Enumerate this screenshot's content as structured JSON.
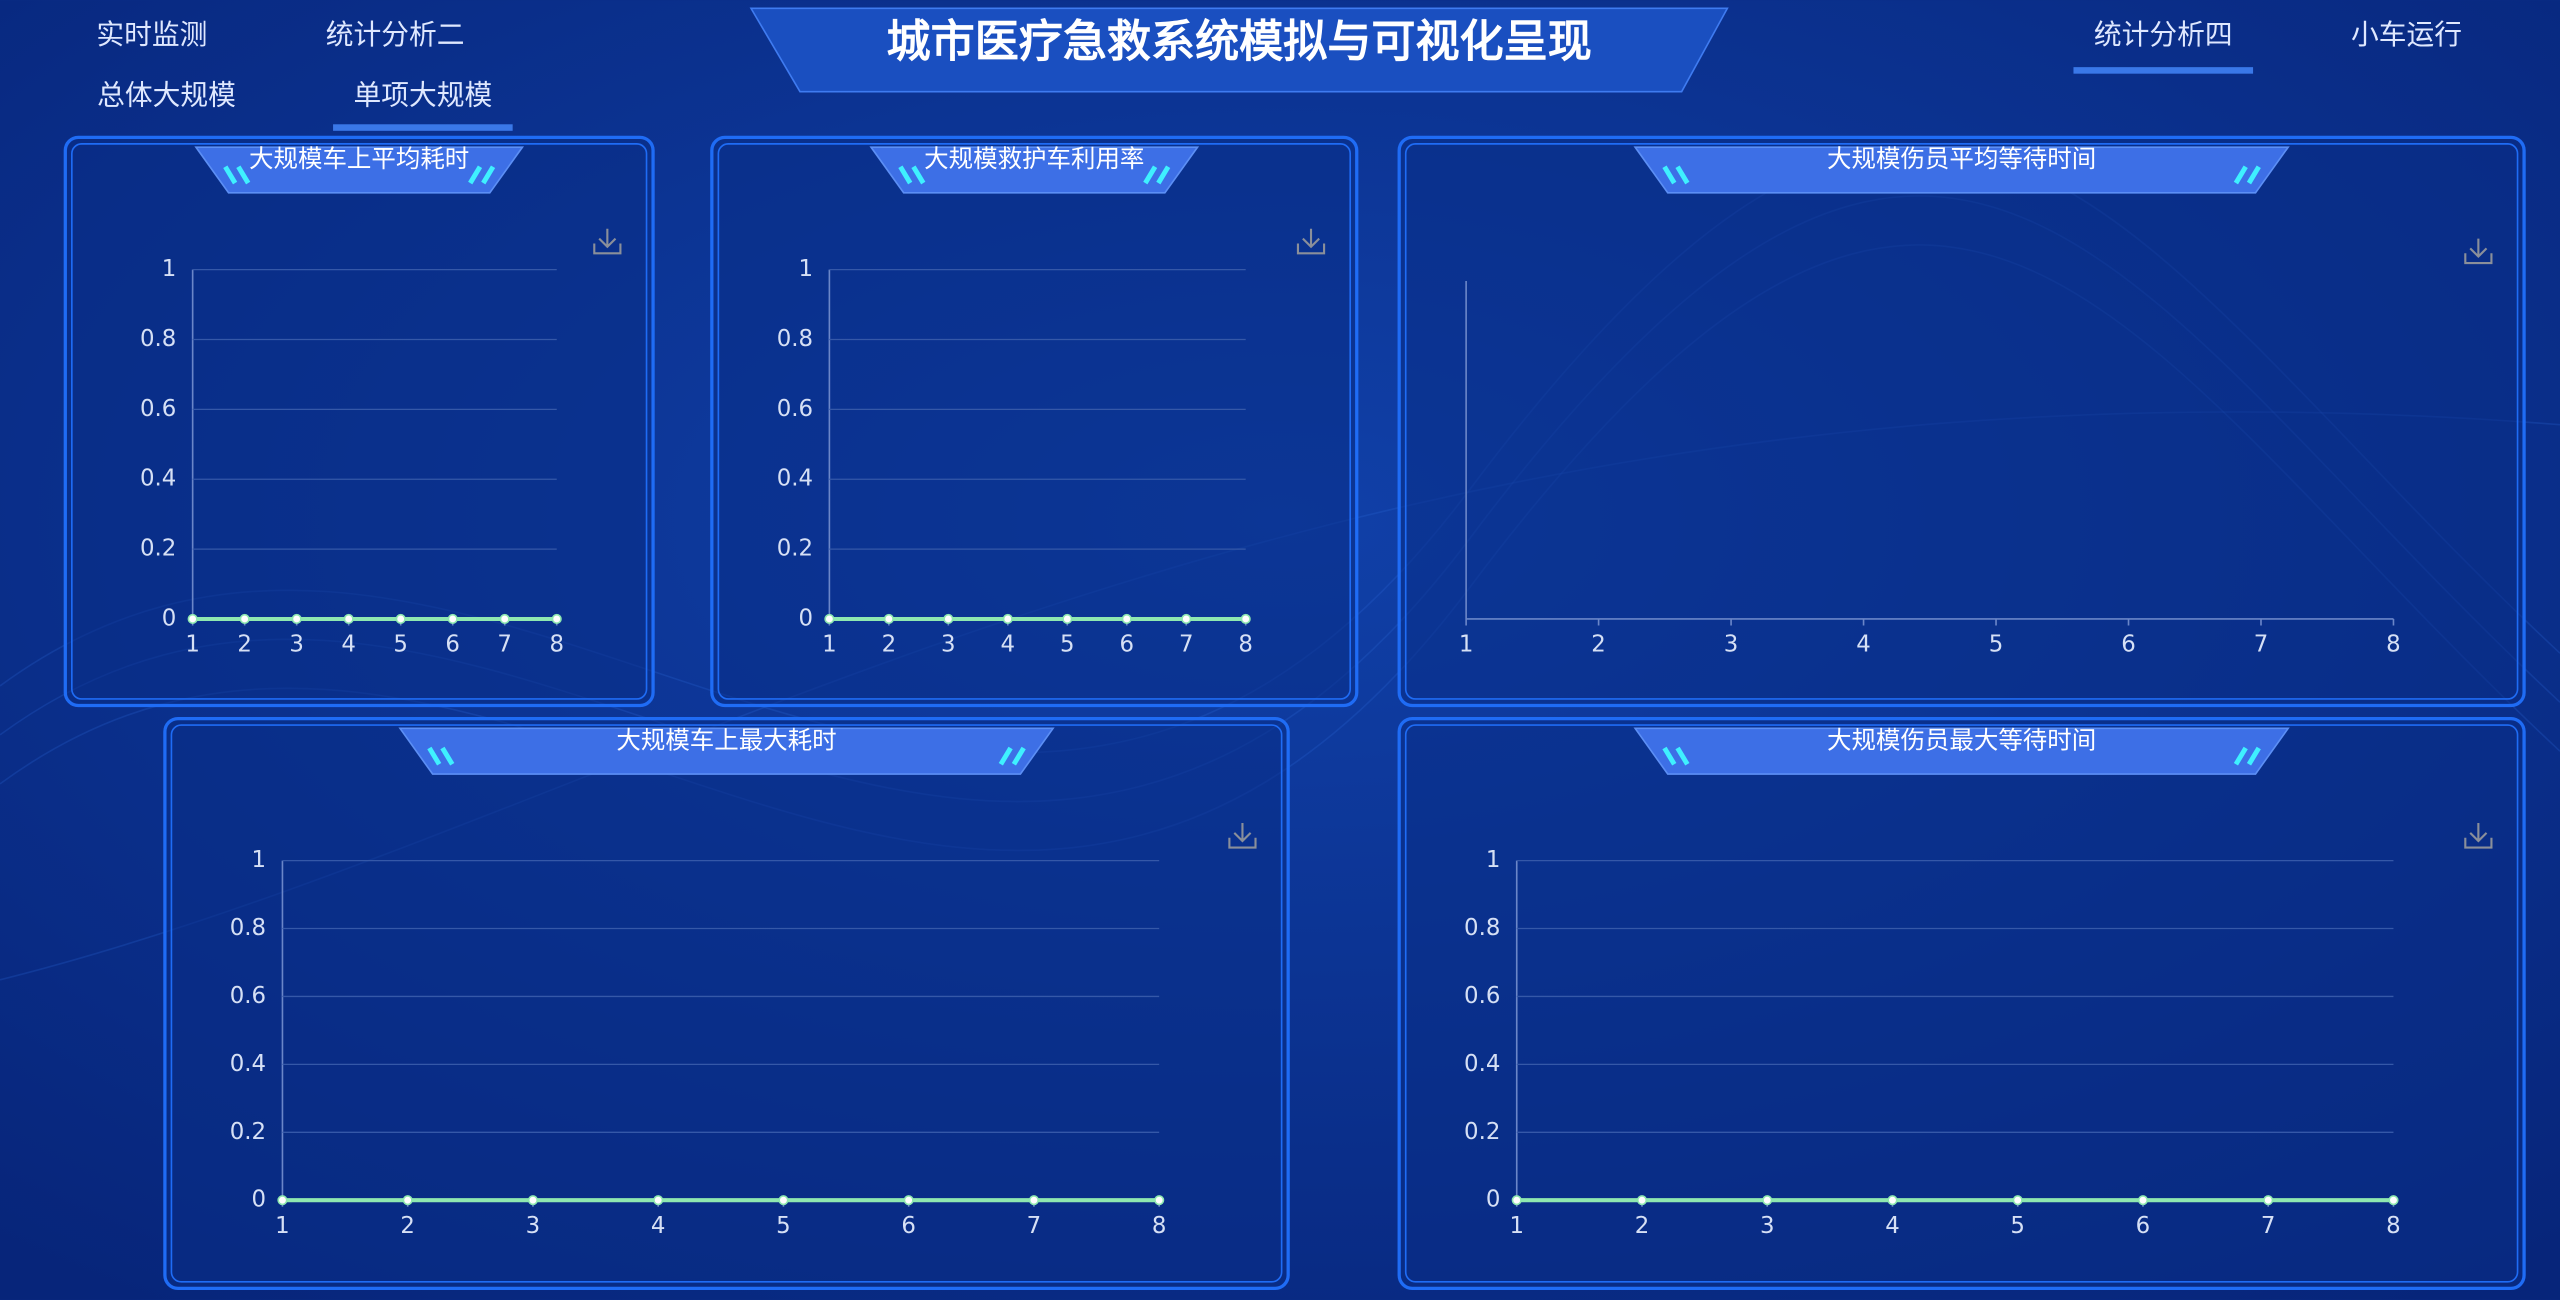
{
  "header": {
    "title": "城市医疗急救系统模拟与可视化呈现",
    "nav_left": [
      "实时监测",
      "统计分析二",
      "总体大规模",
      "单项大规模"
    ],
    "nav_right": [
      "统计分析四",
      "小车运行"
    ]
  },
  "chart_data": [
    {
      "type": "line",
      "title": "大规模车上平均耗时",
      "x": [
        1,
        2,
        3,
        4,
        5,
        6,
        7,
        8
      ],
      "values": [
        0,
        0,
        0,
        0,
        0,
        0,
        0,
        0
      ],
      "color": "#8fe8b0",
      "xlim": [
        1,
        8
      ],
      "xticks": [
        1,
        2,
        3,
        4,
        5,
        6,
        7,
        8
      ],
      "ylim": [
        0,
        1
      ],
      "yticks": [
        0,
        0.2,
        0.4,
        0.6,
        0.8,
        1
      ],
      "grid": true
    },
    {
      "type": "line",
      "title": "大规模救护车利用率",
      "x": [
        1,
        2,
        3,
        4,
        5,
        6,
        7,
        8
      ],
      "values": [
        0,
        0,
        0,
        0,
        0,
        0,
        0,
        0
      ],
      "color": "#8fe8b0",
      "xlim": [
        1,
        8
      ],
      "xticks": [
        1,
        2,
        3,
        4,
        5,
        6,
        7,
        8
      ],
      "ylim": [
        0,
        1
      ],
      "yticks": [
        0,
        0.2,
        0.4,
        0.6,
        0.8,
        1
      ],
      "grid": true
    },
    {
      "type": "line",
      "title": "大规模伤员平均等待时间",
      "xlim": [
        1,
        8
      ],
      "xticks": [
        1,
        2,
        3,
        4,
        5,
        6,
        7,
        8
      ]
    },
    {
      "type": "line",
      "title": "大规模车上最大耗时",
      "x": [
        1,
        2,
        3,
        4,
        5,
        6,
        7,
        8
      ],
      "values": [
        0,
        0,
        0,
        0,
        0,
        0,
        0,
        0
      ],
      "color": "#8fe8b0",
      "xlim": [
        1,
        8
      ],
      "xticks": [
        1,
        2,
        3,
        4,
        5,
        6,
        7,
        8
      ],
      "ylim": [
        0,
        1
      ],
      "yticks": [
        0,
        0.2,
        0.4,
        0.6,
        0.8,
        1
      ],
      "grid": true
    },
    {
      "type": "line",
      "title": "大规模伤员最大等待时间",
      "x": [
        1,
        2,
        3,
        4,
        5,
        6,
        7,
        8
      ],
      "values": [
        0,
        0,
        0,
        0,
        0,
        0,
        0,
        0
      ],
      "color": "#8fe8b0",
      "xlim": [
        1,
        8
      ],
      "xticks": [
        1,
        2,
        3,
        4,
        5,
        6,
        7,
        8
      ],
      "ylim": [
        0,
        1
      ],
      "yticks": [
        0,
        0.2,
        0.4,
        0.6,
        0.8,
        1
      ],
      "grid": true
    }
  ]
}
